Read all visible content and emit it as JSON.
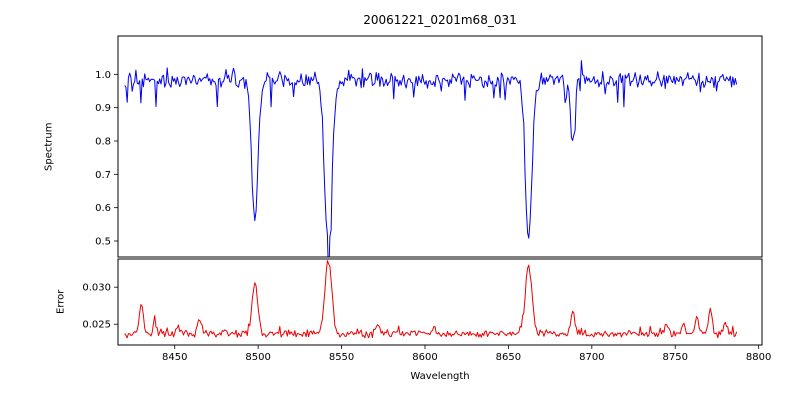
{
  "figure": {
    "title": "20061221_0201m68_031",
    "xlabel": "Wavelength",
    "background": "#ffffff"
  },
  "x_axis": {
    "xlim": [
      8416,
      8802
    ],
    "ticks": [
      {
        "v": 8450,
        "label": "8450"
      },
      {
        "v": 8500,
        "label": "8500"
      },
      {
        "v": 8550,
        "label": "8550"
      },
      {
        "v": 8600,
        "label": "8600"
      },
      {
        "v": 8650,
        "label": "8650"
      },
      {
        "v": 8700,
        "label": "8700"
      },
      {
        "v": 8750,
        "label": "8750"
      },
      {
        "v": 8800,
        "label": "8800"
      }
    ]
  },
  "chart_data": [
    {
      "type": "line",
      "name": "spectrum",
      "ylabel": "Spectrum",
      "color": "#0000ee",
      "ylim": [
        0.452,
        1.115
      ],
      "yticks": [
        {
          "v": 0.5,
          "label": "0.5"
        },
        {
          "v": 0.6,
          "label": "0.6"
        },
        {
          "v": 0.7,
          "label": "0.7"
        },
        {
          "v": 0.8,
          "label": "0.8"
        },
        {
          "v": 0.9,
          "label": "0.9"
        },
        {
          "v": 1.0,
          "label": "1.0"
        }
      ],
      "x_start": 8420,
      "x_end": 8787,
      "x_step": 0.75,
      "continuum": 0.983,
      "noise": 0.013,
      "absorption_lines": [
        {
          "center": 8498.0,
          "depth": 0.41,
          "sigma": 1.9
        },
        {
          "center": 8542.1,
          "depth": 0.5,
          "sigma": 2.2
        },
        {
          "center": 8662.1,
          "depth": 0.48,
          "sigma": 2.0
        },
        {
          "center": 8688.6,
          "depth": 0.19,
          "sigma": 1.2
        }
      ]
    },
    {
      "type": "line",
      "name": "error",
      "ylabel": "Error",
      "color": "#ee0000",
      "ylim": [
        0.0222,
        0.0338
      ],
      "yticks": [
        {
          "v": 0.025,
          "label": "0.025"
        },
        {
          "v": 0.03,
          "label": "0.030"
        }
      ],
      "x_start": 8420,
      "x_end": 8787,
      "x_step": 0.75,
      "baseline": 0.0237,
      "noise": 0.0003,
      "peaks": [
        {
          "center": 8430,
          "height": 0.004,
          "sigma": 1.2
        },
        {
          "center": 8438,
          "height": 0.0012,
          "sigma": 1.0
        },
        {
          "center": 8452,
          "height": 0.0008,
          "sigma": 1.0
        },
        {
          "center": 8465,
          "height": 0.002,
          "sigma": 1.2
        },
        {
          "center": 8480,
          "height": 0.0008,
          "sigma": 1.0
        },
        {
          "center": 8498,
          "height": 0.0067,
          "sigma": 1.7
        },
        {
          "center": 8542.1,
          "height": 0.0098,
          "sigma": 2.0
        },
        {
          "center": 8572,
          "height": 0.0013,
          "sigma": 1.2
        },
        {
          "center": 8605,
          "height": 0.0008,
          "sigma": 1.0
        },
        {
          "center": 8662.1,
          "height": 0.0094,
          "sigma": 1.9
        },
        {
          "center": 8688.6,
          "height": 0.003,
          "sigma": 1.2
        },
        {
          "center": 8745,
          "height": 0.0014,
          "sigma": 1.0
        },
        {
          "center": 8755,
          "height": 0.0016,
          "sigma": 1.0
        },
        {
          "center": 8763,
          "height": 0.0024,
          "sigma": 1.0
        },
        {
          "center": 8771,
          "height": 0.0033,
          "sigma": 1.1
        },
        {
          "center": 8780,
          "height": 0.0016,
          "sigma": 1.0
        }
      ]
    }
  ]
}
